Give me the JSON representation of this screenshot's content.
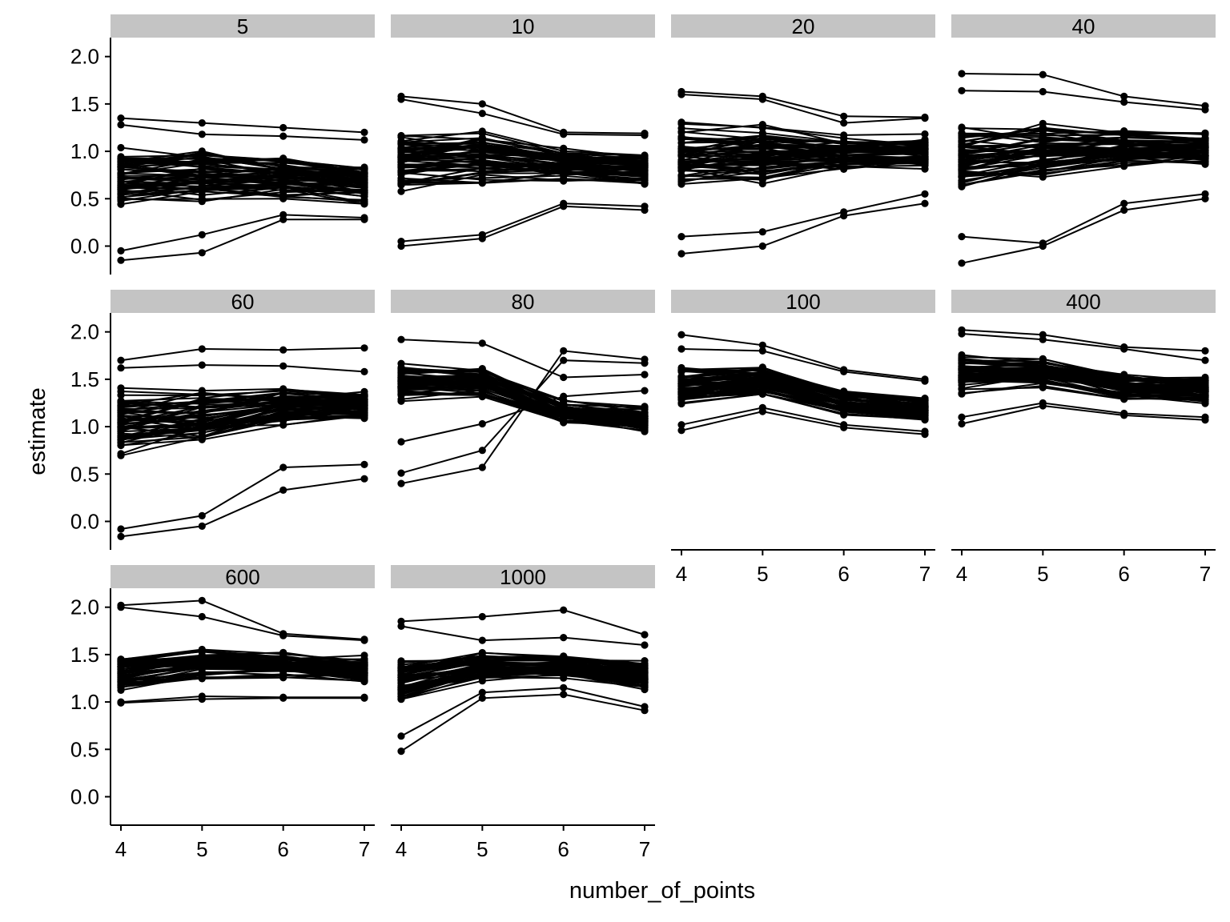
{
  "chart_data": {
    "type": "line",
    "xlabel": "number_of_points",
    "ylabel": "estimate",
    "x": [
      4,
      5,
      6,
      7
    ],
    "x_ticks": [
      "4",
      "5",
      "6",
      "7"
    ],
    "y_ticks": [
      "0.0",
      "0.5",
      "1.0",
      "1.5",
      "2.0"
    ],
    "ylim": [
      -0.3,
      2.2
    ],
    "xlim": [
      3.85,
      7.15
    ],
    "line_color": "#000000",
    "strip_color": "#c4c4c4",
    "facet_columns": 4,
    "facets": [
      {
        "title": "5",
        "baseline": [
          0.72,
          0.75,
          0.72,
          0.66
        ],
        "band": [
          0.3,
          0.26,
          0.22,
          0.2
        ],
        "series_count": 60,
        "extremes": [
          [
            1.35,
            1.3,
            1.25,
            1.2
          ],
          [
            -0.15,
            -0.07,
            0.28,
            0.28
          ],
          [
            -0.05,
            0.12,
            0.33,
            0.3
          ],
          [
            1.28,
            1.18,
            1.16,
            1.12
          ]
        ]
      },
      {
        "title": "10",
        "baseline": [
          0.88,
          0.92,
          0.84,
          0.8
        ],
        "band": [
          0.32,
          0.28,
          0.18,
          0.17
        ],
        "series_count": 60,
        "extremes": [
          [
            1.58,
            1.5,
            1.2,
            1.19
          ],
          [
            0.0,
            0.08,
            0.42,
            0.38
          ],
          [
            1.55,
            1.4,
            1.18,
            1.17
          ],
          [
            0.05,
            0.12,
            0.45,
            0.42
          ]
        ]
      },
      {
        "title": "20",
        "baseline": [
          0.98,
          0.98,
          1.0,
          1.0
        ],
        "band": [
          0.35,
          0.3,
          0.2,
          0.19
        ],
        "series_count": 60,
        "extremes": [
          [
            1.63,
            1.58,
            1.37,
            1.36
          ],
          [
            -0.08,
            0.0,
            0.32,
            0.45
          ],
          [
            0.1,
            0.15,
            0.36,
            0.55
          ],
          [
            1.6,
            1.55,
            1.3,
            1.35
          ]
        ]
      },
      {
        "title": "40",
        "baseline": [
          0.9,
          1.0,
          1.02,
          1.02
        ],
        "band": [
          0.35,
          0.3,
          0.2,
          0.18
        ],
        "series_count": 60,
        "extremes": [
          [
            1.82,
            1.81,
            1.58,
            1.48
          ],
          [
            -0.18,
            0.0,
            0.38,
            0.5
          ],
          [
            1.64,
            1.63,
            1.52,
            1.44
          ],
          [
            0.1,
            0.03,
            0.45,
            0.55
          ]
        ]
      },
      {
        "title": "60",
        "baseline": [
          1.05,
          1.12,
          1.22,
          1.24
        ],
        "band": [
          0.35,
          0.3,
          0.2,
          0.17
        ],
        "series_count": 60,
        "extremes": [
          [
            1.7,
            1.82,
            1.81,
            1.83
          ],
          [
            -0.16,
            -0.05,
            0.33,
            0.45
          ],
          [
            -0.08,
            0.06,
            0.57,
            0.6
          ],
          [
            1.62,
            1.65,
            1.64,
            1.58
          ]
        ]
      },
      {
        "title": "80",
        "baseline": [
          1.48,
          1.47,
          1.15,
          1.08
        ],
        "band": [
          0.2,
          0.17,
          0.13,
          0.13
        ],
        "series_count": 60,
        "extremes": [
          [
            0.4,
            0.57,
            1.8,
            1.71
          ],
          [
            0.51,
            0.75,
            1.7,
            1.67
          ],
          [
            1.92,
            1.88,
            1.52,
            1.55
          ],
          [
            0.84,
            1.03,
            1.32,
            1.38
          ]
        ]
      },
      {
        "title": "100",
        "baseline": [
          1.42,
          1.48,
          1.25,
          1.18
        ],
        "band": [
          0.2,
          0.15,
          0.13,
          0.13
        ],
        "series_count": 60,
        "extremes": [
          [
            1.97,
            1.86,
            1.6,
            1.5
          ],
          [
            0.96,
            1.16,
            0.99,
            0.92
          ],
          [
            1.82,
            1.8,
            1.58,
            1.48
          ],
          [
            1.02,
            1.2,
            1.02,
            0.95
          ]
        ]
      },
      {
        "title": "400",
        "baseline": [
          1.55,
          1.58,
          1.42,
          1.38
        ],
        "band": [
          0.2,
          0.16,
          0.15,
          0.14
        ],
        "series_count": 60,
        "extremes": [
          [
            2.02,
            1.97,
            1.84,
            1.8
          ],
          [
            1.03,
            1.22,
            1.12,
            1.07
          ],
          [
            1.98,
            1.92,
            1.82,
            1.7
          ],
          [
            1.1,
            1.25,
            1.14,
            1.1
          ]
        ]
      },
      {
        "title": "600",
        "baseline": [
          1.35,
          1.43,
          1.4,
          1.35
        ],
        "band": [
          0.22,
          0.18,
          0.14,
          0.14
        ],
        "series_count": 60,
        "extremes": [
          [
            2.02,
            2.07,
            1.72,
            1.66
          ],
          [
            0.99,
            1.03,
            1.04,
            1.04
          ],
          [
            2.0,
            1.9,
            1.7,
            1.65
          ],
          [
            1.0,
            1.06,
            1.05,
            1.05
          ]
        ]
      },
      {
        "title": "1000",
        "baseline": [
          1.22,
          1.38,
          1.38,
          1.28
        ],
        "band": [
          0.25,
          0.15,
          0.13,
          0.15
        ],
        "series_count": 60,
        "extremes": [
          [
            0.48,
            1.04,
            1.08,
            0.91
          ],
          [
            1.85,
            1.9,
            1.97,
            1.71
          ],
          [
            0.64,
            1.1,
            1.15,
            0.95
          ],
          [
            1.8,
            1.65,
            1.68,
            1.6
          ]
        ]
      }
    ]
  }
}
